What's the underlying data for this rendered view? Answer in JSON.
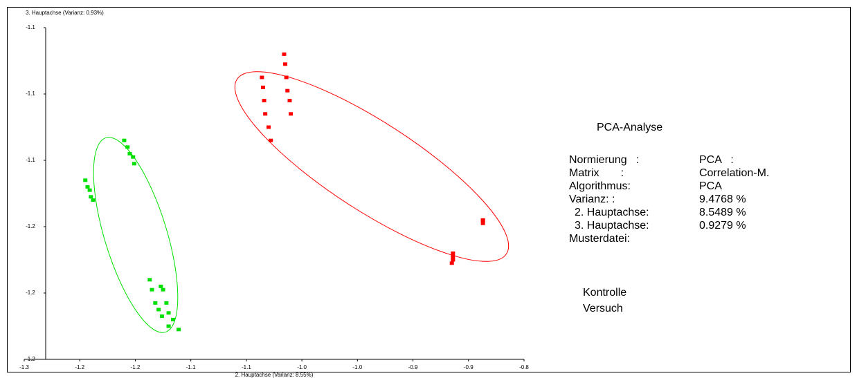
{
  "chart_data": {
    "type": "scatter",
    "y_label": "3. Hauptachse (Varianz: 0.93%)",
    "x_label": "2. Hauptachse (Varianz: 8.55%)",
    "xlim": [
      -1.25,
      -0.8
    ],
    "xticks": [
      {
        "value": -1.25,
        "label": "-1.3"
      },
      {
        "value": -1.2,
        "label": "-1.2"
      },
      {
        "value": -1.15,
        "label": "-1.2"
      },
      {
        "value": -1.1,
        "label": "-1.1"
      },
      {
        "value": -1.05,
        "label": "-1.1"
      },
      {
        "value": -1.0,
        "label": "-1.0"
      },
      {
        "value": -0.95,
        "label": "-1.0"
      },
      {
        "value": -0.9,
        "label": "-0.9"
      },
      {
        "value": -0.85,
        "label": "-0.9"
      },
      {
        "value": -0.8,
        "label": "-0.8"
      }
    ],
    "ylim": [
      -1.2,
      -1.1
    ],
    "yticks": [
      {
        "value": -1.1,
        "label": "-1.1"
      },
      {
        "value": -1.12,
        "label": "-1.1"
      },
      {
        "value": -1.14,
        "label": "-1.1"
      },
      {
        "value": -1.16,
        "label": "-1.2"
      },
      {
        "value": -1.18,
        "label": "-1.2"
      },
      {
        "value": -1.2,
        "label": "-1.2"
      }
    ],
    "series": [
      {
        "name": "Kontrolle",
        "color": "#ff0000",
        "x": [
          -1.016,
          -1.015,
          -1.036,
          -1.035,
          -1.014,
          -1.013,
          -1.034,
          -1.011,
          -1.033,
          -1.01,
          -1.03,
          -1.028,
          -0.837,
          -0.837,
          -0.837,
          -0.864,
          -0.864,
          -0.864,
          -0.865
        ],
        "y": [
          -1.108,
          -1.111,
          -1.115,
          -1.118,
          -1.115,
          -1.119,
          -1.122,
          -1.122,
          -1.126,
          -1.126,
          -1.13,
          -1.134,
          -1.158,
          -1.158,
          -1.159,
          -1.168,
          -1.169,
          -1.17,
          -1.171
        ]
      },
      {
        "name": "Versuch",
        "color": "#00e000",
        "x": [
          -1.16,
          -1.157,
          -1.155,
          -1.152,
          -1.151,
          -1.195,
          -1.193,
          -1.191,
          -1.19,
          -1.188,
          -1.137,
          -1.127,
          -1.135,
          -1.125,
          -1.132,
          -1.122,
          -1.129,
          -1.12,
          -1.126,
          -1.116,
          -1.12,
          -1.111
        ],
        "y": [
          -1.134,
          -1.136,
          -1.138,
          -1.139,
          -1.141,
          -1.146,
          -1.148,
          -1.149,
          -1.151,
          -1.152,
          -1.176,
          -1.178,
          -1.179,
          -1.179,
          -1.183,
          -1.183,
          -1.185,
          -1.186,
          -1.187,
          -1.188,
          -1.19,
          -1.191
        ]
      }
    ],
    "info_title": "PCA-Analyse",
    "info": [
      {
        "label": "Normierung   :",
        "value": "PCA   :"
      },
      {
        "label": "Matrix       :",
        "value": "Correlation-M."
      },
      {
        "label": "Algorithmus:",
        "value": "PCA"
      },
      {
        "label": "Varianz: :",
        "value": "9.4768 %"
      },
      {
        "label": "2. Hauptachse:",
        "value": "8.5489 %"
      },
      {
        "label": "3. Hauptachse:",
        "value": "0.9279 %"
      },
      {
        "label": "Musterdatei:"
      }
    ]
  }
}
